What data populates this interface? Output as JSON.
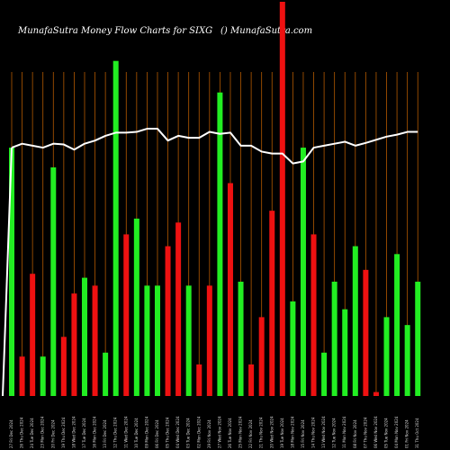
{
  "header": {
    "title": "MunafaSutra  Money Flow  Charts for SIXG",
    "site": "() MunafaSutra.com"
  },
  "colors": {
    "background": "#000000",
    "grid": "#b35900",
    "up": "#22ee22",
    "down": "#ee1111",
    "line": "#ffffff"
  },
  "chart_data": {
    "type": "bar",
    "ylim": [
      0,
      100
    ],
    "grid": true,
    "categories": [
      "27 Fri Dec 2024",
      "26 Thu Dec 2024",
      "24 Tue Dec 2024",
      "23 Mon Dec 2024",
      "20 Fri Dec 2024",
      "19 Thu Dec 2024",
      "18 Wed Dec 2024",
      "17 Tue Dec 2024",
      "16 Mon Dec 2024",
      "13 Fri Dec 2024",
      "12 Thu Dec 2024",
      "11 Wed Dec 2024",
      "10 Tue Dec 2024",
      "09 Mon Dec 2024",
      "06 Fri Dec 2024",
      "05 Thu Dec 2024",
      "04 Wed Dec 2024",
      "03 Tue Dec 2024",
      "02 Mon Dec 2024",
      "29 Fri Nov 2024",
      "27 Wed Nov 2024",
      "26 Tue Nov 2024",
      "25 Mon Nov 2024",
      "22 Fri Nov 2024",
      "21 Thu Nov 2024",
      "20 Wed Nov 2024",
      "19 Tue Nov 2024",
      "18 Mon Nov 2024",
      "15 Fri Nov 2024",
      "14 Thu Nov 2024",
      "13 Wed Nov 2024",
      "12 Tue Nov 2024",
      "11 Mon Nov 2024",
      "08 Fri Nov 2024",
      "07 Thu Nov 2024",
      "06 Wed Nov 2024",
      "05 Tue Nov 2024",
      "04 Mon Nov 2024",
      "01 Fri Nov 2024",
      "31 Thu Oct 2024"
    ],
    "values": [
      63,
      10,
      31,
      10,
      58,
      15,
      26,
      30,
      28,
      11,
      85,
      41,
      45,
      28,
      28,
      38,
      44,
      28,
      8,
      28,
      77,
      54,
      29,
      8,
      20,
      47,
      100,
      24,
      63,
      41,
      11,
      29,
      22,
      38,
      32,
      1,
      20,
      36,
      18,
      29
    ],
    "direction": [
      "up",
      "down",
      "down",
      "up",
      "up",
      "down",
      "down",
      "up",
      "down",
      "up",
      "up",
      "down",
      "up",
      "up",
      "up",
      "down",
      "down",
      "up",
      "down",
      "down",
      "up",
      "down",
      "up",
      "down",
      "down",
      "down",
      "down",
      "up",
      "up",
      "down",
      "up",
      "up",
      "up",
      "up",
      "down",
      "down",
      "up",
      "up",
      "up",
      "up"
    ],
    "line": [
      63,
      64,
      63.5,
      63,
      64,
      63.8,
      62.5,
      64,
      64.8,
      66,
      66.8,
      66.8,
      67,
      67.8,
      67.8,
      64.8,
      66,
      65.5,
      65.5,
      67,
      66.5,
      66.8,
      63.5,
      63.5,
      62,
      61.5,
      61.5,
      59,
      59.5,
      63,
      63.5,
      64,
      64.5,
      63.5,
      64.2,
      65,
      65.8,
      66.3,
      67,
      67
    ]
  }
}
